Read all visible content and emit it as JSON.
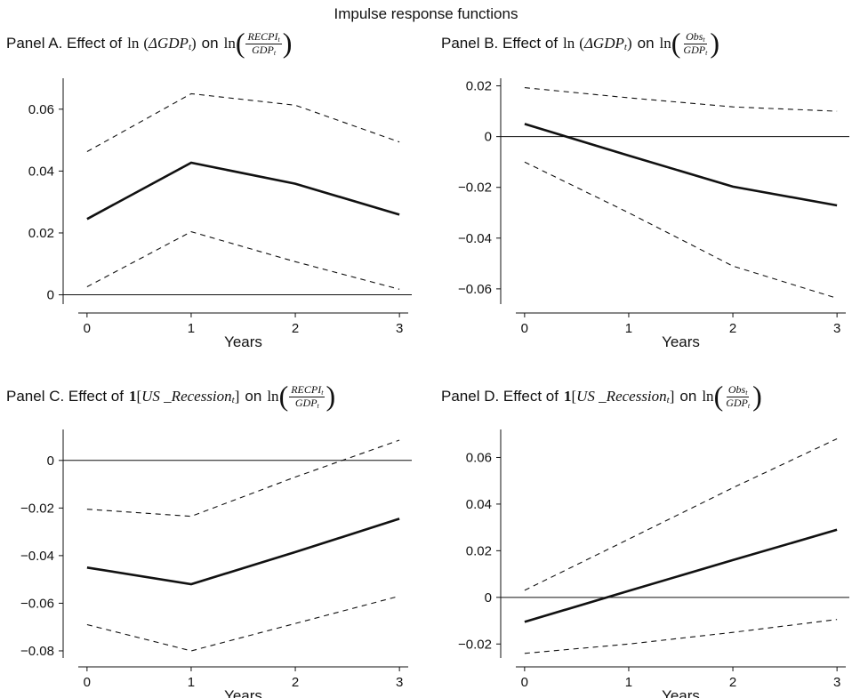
{
  "figure": {
    "title": "Impulse response functions"
  },
  "titles": {
    "A": {
      "lead": "Panel A. Effect of",
      "on": "on",
      "num": "RECPI",
      "den": "GDP"
    },
    "B": {
      "lead": "Panel B. Effect of",
      "on": "on",
      "num": "Obs",
      "den": "GDP"
    },
    "C": {
      "lead": "Panel C. Effect of",
      "on": "on",
      "num": "RECPI",
      "den": "GDP"
    },
    "D": {
      "lead": "Panel D. Effect of",
      "on": "on",
      "num": "Obs",
      "den": "GDP"
    }
  },
  "symbols": {
    "ln": "ln",
    "delta_gdp": "ΔGDP",
    "t": "t",
    "indicator": "1",
    "us_recession": "US _Recession"
  },
  "chart_data": [
    {
      "id": "A",
      "type": "line",
      "xlabel": "Years",
      "x": [
        0,
        1,
        2,
        3
      ],
      "xticks": [
        0,
        1,
        2,
        3
      ],
      "yticks": [
        0,
        0.02,
        0.04,
        0.06
      ],
      "ytick_labels": [
        "0",
        "0.02",
        "0.04",
        "0.06"
      ],
      "ylim": [
        -0.003,
        0.07
      ],
      "xlim": [
        -0.05,
        3.05
      ],
      "zero_line": true,
      "series": [
        {
          "style": "solid",
          "values": [
            0.0245,
            0.0427,
            0.0359,
            0.0259
          ]
        },
        {
          "style": "dashed",
          "values": [
            0.0463,
            0.065,
            0.0613,
            0.0494
          ]
        },
        {
          "style": "dashed",
          "values": [
            0.0026,
            0.0204,
            0.0107,
            0.0018
          ]
        }
      ]
    },
    {
      "id": "B",
      "type": "line",
      "xlabel": "Years",
      "x": [
        0,
        1,
        2,
        3
      ],
      "xticks": [
        0,
        1,
        2,
        3
      ],
      "yticks": [
        -0.06,
        -0.04,
        -0.02,
        0,
        0.02
      ],
      "ytick_labels": [
        "−0.06",
        "−0.04",
        "−0.02",
        "0",
        "0.02"
      ],
      "ylim": [
        -0.066,
        0.023
      ],
      "xlim": [
        -0.05,
        3.05
      ],
      "zero_line": true,
      "series": [
        {
          "style": "solid",
          "values": [
            0.005,
            -0.0075,
            -0.0197,
            -0.0271
          ]
        },
        {
          "style": "dashed",
          "values": [
            0.0193,
            0.0153,
            0.0117,
            0.01
          ]
        },
        {
          "style": "dashed",
          "values": [
            -0.01,
            -0.03,
            -0.051,
            -0.0637
          ]
        }
      ]
    },
    {
      "id": "C",
      "type": "line",
      "xlabel": "Years",
      "x": [
        0,
        1,
        2,
        3
      ],
      "xticks": [
        0,
        1,
        2,
        3
      ],
      "yticks": [
        -0.08,
        -0.06,
        -0.04,
        -0.02,
        0
      ],
      "ytick_labels": [
        "−0.08",
        "−0.06",
        "−0.04",
        "−0.02",
        "0"
      ],
      "ylim": [
        -0.083,
        0.013
      ],
      "xlim": [
        -0.05,
        3.05
      ],
      "zero_line": true,
      "series": [
        {
          "style": "solid",
          "values": [
            -0.045,
            -0.052,
            -0.0385,
            -0.0245
          ]
        },
        {
          "style": "dashed",
          "values": [
            -0.0205,
            -0.0235,
            -0.007,
            0.0085
          ]
        },
        {
          "style": "dashed",
          "values": [
            -0.069,
            -0.08,
            -0.0685,
            -0.057
          ]
        }
      ]
    },
    {
      "id": "D",
      "type": "line",
      "xlabel": "Years",
      "x": [
        0,
        1,
        2,
        3
      ],
      "xticks": [
        0,
        1,
        2,
        3
      ],
      "yticks": [
        -0.02,
        0,
        0.02,
        0.04,
        0.06
      ],
      "ytick_labels": [
        "−0.02",
        "0",
        "0.02",
        "0.04",
        "0.06"
      ],
      "ylim": [
        -0.026,
        0.072
      ],
      "xlim": [
        -0.05,
        3.05
      ],
      "zero_line": true,
      "series": [
        {
          "style": "solid",
          "values": [
            -0.0105,
            0.0028,
            0.016,
            0.029
          ]
        },
        {
          "style": "dashed",
          "values": [
            0.003,
            0.025,
            0.047,
            0.068
          ]
        },
        {
          "style": "dashed",
          "values": [
            -0.024,
            -0.02,
            -0.015,
            -0.0095
          ]
        }
      ]
    }
  ]
}
